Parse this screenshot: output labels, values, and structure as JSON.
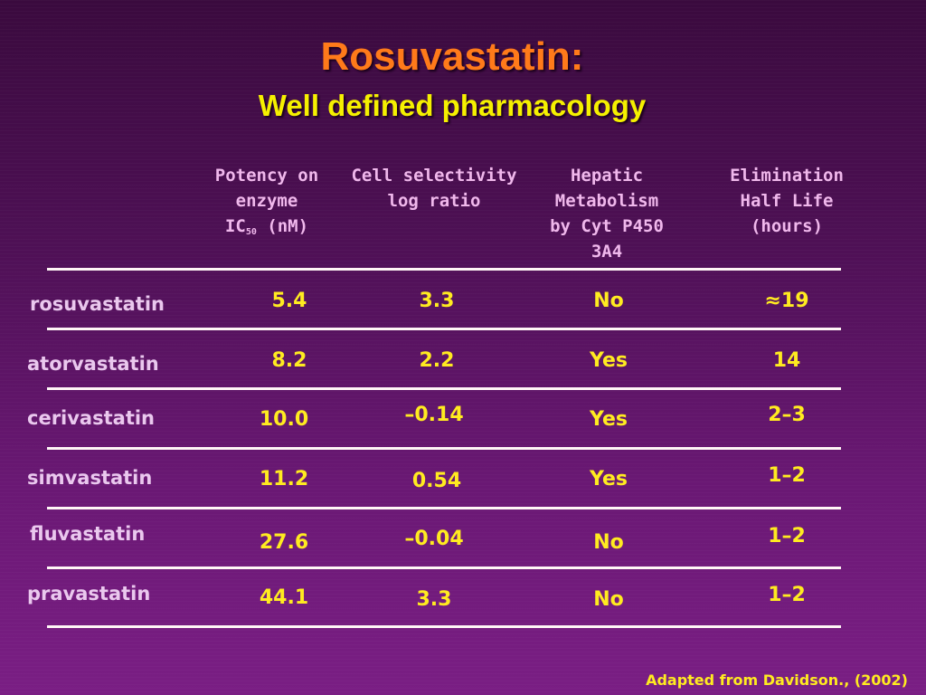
{
  "title": "Rosuvastatin:",
  "subtitle": "Well defined pharmacology",
  "table": {
    "columns": [
      {
        "lines": [
          "Potency on",
          "enzyme"
        ],
        "ic_label": "IC",
        "ic_sub": "50",
        "ic_unit": " (nM)"
      },
      {
        "lines": [
          "Cell selectivity",
          "log ratio"
        ]
      },
      {
        "lines": [
          "Hepatic",
          "Metabolism",
          "by Cyt P450",
          "3A4"
        ]
      },
      {
        "lines": [
          "Elimination",
          "Half Life",
          "(hours)"
        ]
      }
    ],
    "rows": [
      {
        "name": "rosuvastatin",
        "values": [
          "5.4",
          "3.3",
          "No",
          "≈19"
        ]
      },
      {
        "name": "atorvastatin",
        "values": [
          "8.2",
          "2.2",
          "Yes",
          "14"
        ]
      },
      {
        "name": "cerivastatin",
        "values": [
          "10.0",
          "–0.14",
          "Yes",
          "2–3"
        ]
      },
      {
        "name": "simvastatin",
        "values": [
          "11.2",
          "0.54",
          "Yes",
          "1–2"
        ]
      },
      {
        "name": "fluvastatin",
        "values": [
          "27.6",
          "–0.04",
          "No",
          "1–2"
        ]
      },
      {
        "name": "pravastatin",
        "values": [
          "44.1",
          "3.3",
          "No",
          "1–2"
        ]
      }
    ]
  },
  "source": "Adapted from Davidson., (2002)",
  "colors": {
    "title": "#ff7a1a",
    "subtitle": "#f5f000",
    "values": "#ffeb20",
    "labels": "#eac8ee",
    "rules": "#fff6f6"
  }
}
